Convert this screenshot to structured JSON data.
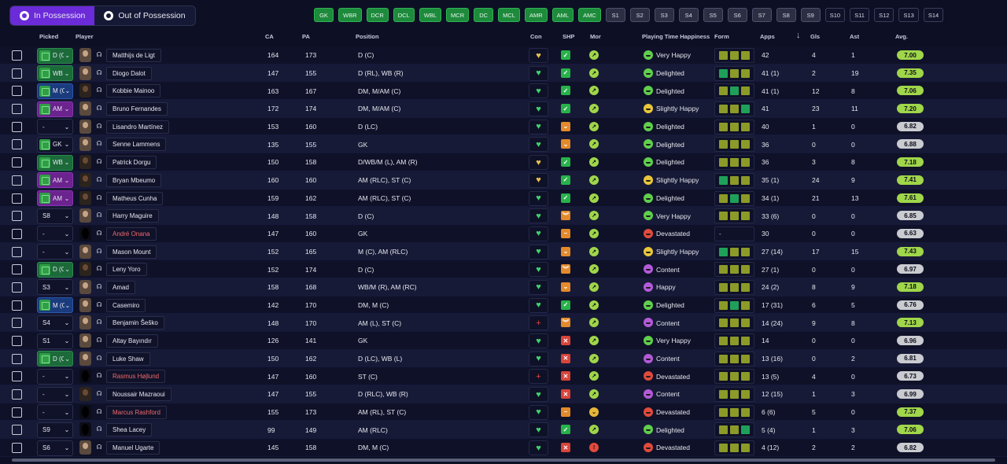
{
  "toggle": {
    "in_possession": "In Possession",
    "out_possession": "Out of Possession"
  },
  "filters": [
    "GK",
    "WBR",
    "DCR",
    "DCL",
    "WBL",
    "MCR",
    "DC",
    "MCL",
    "AMR",
    "AML",
    "AMC",
    "S1",
    "S2",
    "S3",
    "S4",
    "S5",
    "S6",
    "S7",
    "S8",
    "S9",
    "S10",
    "S11",
    "S12",
    "S13",
    "S14"
  ],
  "headers": {
    "picked": "Picked",
    "player": "Player",
    "ca": "CA",
    "pa": "PA",
    "position": "Position",
    "con": "Con",
    "shp": "SHP",
    "mor": "Mor",
    "pth": "Playing Time Happiness",
    "form": "Form",
    "apps": "Apps",
    "sort_arrow": "↓",
    "gls": "Gls",
    "ast": "Ast",
    "avg": "Avg."
  },
  "icons": {
    "pos_icon": "football-icon",
    "headset": "headset-icon",
    "chevron": "chevron-down-icon",
    "con": "heart-icon",
    "shp_ok": "check-icon",
    "shp_warn": "chevron-down-icon",
    "shp_bad": "x-icon",
    "mor": "face-icon"
  },
  "colors": {
    "accent": "#6c2bd9",
    "pos_chip": "#1d8a3c",
    "avg_high": "#9fd64a",
    "morale_good": "#9fd64a",
    "morale_bad": "#e14a3c",
    "name_red": "#f06a6a"
  },
  "rows": [
    {
      "picked": "D (C",
      "pick_style": "sel-green",
      "face": "light",
      "name": "Matthijs de Ligt",
      "ca": "164",
      "pa": "173",
      "position": "D (C)",
      "con": "♥",
      "con_color": "#e7c24a",
      "shp": "ok",
      "mor": "good",
      "pth": "Very Happy",
      "pth_color": "green",
      "form": [
        "o",
        "o",
        "o"
      ],
      "form_text": "",
      "apps": "42",
      "gls": "4",
      "ast": "1",
      "avg": "7.00",
      "avg_style": "hi"
    },
    {
      "picked": "WB",
      "pick_style": "sel-green",
      "face": "light",
      "name": "Diogo Dalot",
      "ca": "147",
      "pa": "155",
      "position": "D (RL), WB (R)",
      "con": "♥",
      "con_color": "#3fd36a",
      "shp": "ok",
      "mor": "good",
      "pth": "Delighted",
      "pth_color": "green",
      "form": [
        "g",
        "o",
        "o"
      ],
      "form_text": "",
      "apps": "41 (1)",
      "gls": "2",
      "ast": "19",
      "avg": "7.35",
      "avg_style": "hi"
    },
    {
      "picked": "M (C",
      "pick_style": "sel-blue",
      "face": "dark",
      "name": "Kobbie Mainoo",
      "ca": "163",
      "pa": "167",
      "position": "DM, M/AM (C)",
      "con": "♥",
      "con_color": "#3fd36a",
      "shp": "ok",
      "mor": "good",
      "pth": "Delighted",
      "pth_color": "green",
      "form": [
        "o",
        "g",
        "o"
      ],
      "form_text": "",
      "apps": "41 (1)",
      "gls": "12",
      "ast": "8",
      "avg": "7.06",
      "avg_style": "hi"
    },
    {
      "picked": "AM",
      "pick_style": "sel-purple",
      "face": "light",
      "name": "Bruno Fernandes",
      "ca": "172",
      "pa": "174",
      "position": "DM, M/AM (C)",
      "con": "♥",
      "con_color": "#3fd36a",
      "shp": "ok",
      "mor": "good",
      "pth": "Slightly Happy",
      "pth_color": "yellow",
      "form": [
        "o",
        "o",
        "g"
      ],
      "form_text": "",
      "apps": "41",
      "gls": "23",
      "ast": "11",
      "avg": "7.20",
      "avg_style": "hi"
    },
    {
      "picked": "-",
      "pick_style": "plain",
      "face": "light",
      "name": "Lisandro Martínez",
      "ca": "153",
      "pa": "160",
      "position": "D (LC)",
      "con": "♥",
      "con_color": "#3fd36a",
      "shp": "warn",
      "mor": "good",
      "pth": "Delighted",
      "pth_color": "green",
      "form": [
        "o",
        "o",
        "o"
      ],
      "form_text": "",
      "apps": "40",
      "gls": "1",
      "ast": "0",
      "avg": "6.82",
      "avg_style": "low"
    },
    {
      "picked": "GK",
      "pick_style": "sel-green-plain",
      "face": "light",
      "name": "Senne Lammens",
      "ca": "135",
      "pa": "155",
      "position": "GK",
      "con": "♥",
      "con_color": "#3fd36a",
      "shp": "warn",
      "mor": "good",
      "pth": "Delighted",
      "pth_color": "green",
      "form": [
        "o",
        "o",
        "o"
      ],
      "form_text": "",
      "apps": "36",
      "gls": "0",
      "ast": "0",
      "avg": "6.88",
      "avg_style": "low"
    },
    {
      "picked": "WB",
      "pick_style": "sel-green",
      "face": "dark",
      "name": "Patrick Dorgu",
      "ca": "150",
      "pa": "158",
      "position": "D/WB/M (L), AM (R)",
      "con": "♥",
      "con_color": "#e7c24a",
      "shp": "ok",
      "mor": "good",
      "pth": "Delighted",
      "pth_color": "green",
      "form": [
        "o",
        "o",
        "o"
      ],
      "form_text": "",
      "apps": "36",
      "gls": "3",
      "ast": "8",
      "avg": "7.18",
      "avg_style": "hi"
    },
    {
      "picked": "AM",
      "pick_style": "sel-purple",
      "face": "dark",
      "name": "Bryan Mbeumo",
      "ca": "160",
      "pa": "160",
      "position": "AM (RLC), ST (C)",
      "con": "♥",
      "con_color": "#e7c24a",
      "shp": "ok",
      "mor": "good",
      "pth": "Slightly Happy",
      "pth_color": "yellow",
      "form": [
        "g",
        "o",
        "o"
      ],
      "form_text": "",
      "apps": "35 (1)",
      "gls": "24",
      "ast": "9",
      "avg": "7.41",
      "avg_style": "hi"
    },
    {
      "picked": "AM",
      "pick_style": "sel-purple",
      "face": "dark",
      "name": "Matheus Cunha",
      "ca": "159",
      "pa": "162",
      "position": "AM (RLC), ST (C)",
      "con": "♥",
      "con_color": "#3fd36a",
      "shp": "ok",
      "mor": "good",
      "pth": "Delighted",
      "pth_color": "green",
      "form": [
        "o",
        "g",
        "o"
      ],
      "form_text": "",
      "apps": "34 (1)",
      "gls": "21",
      "ast": "13",
      "avg": "7.61",
      "avg_style": "hi"
    },
    {
      "picked": "S8",
      "pick_style": "plain",
      "face": "light",
      "name": "Harry Maguire",
      "ca": "148",
      "pa": "158",
      "position": "D (C)",
      "con": "♥",
      "con_color": "#3fd36a",
      "shp": "bad-warn",
      "mor": "good",
      "pth": "Very Happy",
      "pth_color": "green",
      "form": [
        "o",
        "o",
        "o"
      ],
      "form_text": "",
      "apps": "33 (6)",
      "gls": "0",
      "ast": "0",
      "avg": "6.85",
      "avg_style": "low"
    },
    {
      "picked": "-",
      "pick_style": "plain",
      "face": "silhouette",
      "name": "André Onana",
      "name_red": true,
      "ca": "147",
      "pa": "160",
      "position": "GK",
      "con": "♥",
      "con_color": "#3fd36a",
      "shp": "warn-flat",
      "mor": "good",
      "pth": "Devastated",
      "pth_color": "red",
      "form": [],
      "form_text": "-",
      "apps": "30",
      "gls": "0",
      "ast": "0",
      "avg": "6.63",
      "avg_style": "low"
    },
    {
      "picked": "-",
      "pick_style": "plain",
      "face": "light",
      "name": "Mason Mount",
      "ca": "152",
      "pa": "165",
      "position": "M (C), AM (RLC)",
      "con": "♥",
      "con_color": "#3fd36a",
      "shp": "warn",
      "mor": "good",
      "pth": "Slightly Happy",
      "pth_color": "yellow",
      "form": [
        "g",
        "o",
        "o"
      ],
      "form_text": "",
      "apps": "27 (14)",
      "gls": "17",
      "ast": "15",
      "avg": "7.43",
      "avg_style": "hi"
    },
    {
      "picked": "D (C",
      "pick_style": "sel-green",
      "face": "dark",
      "name": "Leny Yoro",
      "ca": "152",
      "pa": "174",
      "position": "D (C)",
      "con": "♥",
      "con_color": "#3fd36a",
      "shp": "bad-warn",
      "mor": "good",
      "pth": "Content",
      "pth_color": "purple",
      "form": [
        "o",
        "o",
        "o"
      ],
      "form_text": "",
      "apps": "27 (1)",
      "gls": "0",
      "ast": "0",
      "avg": "6.97",
      "avg_style": "low"
    },
    {
      "picked": "S3",
      "pick_style": "plain",
      "face": "light",
      "name": "Amad",
      "ca": "158",
      "pa": "168",
      "position": "WB/M (R), AM (RC)",
      "con": "♥",
      "con_color": "#3fd36a",
      "shp": "warn",
      "mor": "good",
      "pth": "Happy",
      "pth_color": "purple",
      "form": [
        "o",
        "o",
        "o"
      ],
      "form_text": "",
      "apps": "24 (2)",
      "gls": "8",
      "ast": "9",
      "avg": "7.18",
      "avg_style": "hi"
    },
    {
      "picked": "M (C",
      "pick_style": "sel-blue",
      "face": "light",
      "name": "Casemiro",
      "ca": "142",
      "pa": "170",
      "position": "DM, M (C)",
      "con": "♥",
      "con_color": "#3fd36a",
      "shp": "ok",
      "mor": "good",
      "pth": "Delighted",
      "pth_color": "green",
      "form": [
        "o",
        "g",
        "o"
      ],
      "form_text": "",
      "apps": "17 (31)",
      "gls": "6",
      "ast": "5",
      "avg": "6.76",
      "avg_style": "low"
    },
    {
      "picked": "S4",
      "pick_style": "plain",
      "face": "light",
      "name": "Benjamin Šeško",
      "ca": "148",
      "pa": "170",
      "position": "AM (L), ST (C)",
      "con": "+",
      "con_color": "#e14a3c",
      "shp": "bad-warn",
      "mor": "good",
      "pth": "Content",
      "pth_color": "purple",
      "form": [
        "o",
        "o",
        "o"
      ],
      "form_text": "",
      "apps": "14 (24)",
      "gls": "9",
      "ast": "8",
      "avg": "7.13",
      "avg_style": "hi"
    },
    {
      "picked": "S1",
      "pick_style": "plain",
      "face": "light",
      "name": "Altay Bayındır",
      "ca": "126",
      "pa": "141",
      "position": "GK",
      "con": "♥",
      "con_color": "#3fd36a",
      "shp": "bad",
      "mor": "good",
      "pth": "Very Happy",
      "pth_color": "green",
      "form": [
        "o",
        "o",
        "o"
      ],
      "form_text": "",
      "apps": "14",
      "gls": "0",
      "ast": "0",
      "avg": "6.96",
      "avg_style": "low"
    },
    {
      "picked": "D (C",
      "pick_style": "sel-green",
      "face": "light",
      "name": "Luke Shaw",
      "ca": "150",
      "pa": "162",
      "position": "D (LC), WB (L)",
      "con": "♥",
      "con_color": "#3fd36a",
      "shp": "bad",
      "mor": "good",
      "pth": "Content",
      "pth_color": "purple",
      "form": [
        "o",
        "o",
        "o"
      ],
      "form_text": "",
      "apps": "13 (16)",
      "gls": "0",
      "ast": "2",
      "avg": "6.81",
      "avg_style": "low"
    },
    {
      "picked": "-",
      "pick_style": "plain",
      "face": "silhouette",
      "name": "Rasmus Højlund",
      "name_red": true,
      "ca": "147",
      "pa": "160",
      "position": "ST (C)",
      "con": "+",
      "con_color": "#e14a3c",
      "shp": "bad",
      "mor": "good",
      "pth": "Devastated",
      "pth_color": "red",
      "form": [
        "o",
        "o",
        "o"
      ],
      "form_text": "",
      "apps": "13 (5)",
      "gls": "4",
      "ast": "0",
      "avg": "6.73",
      "avg_style": "low"
    },
    {
      "picked": "-",
      "pick_style": "plain",
      "face": "dark",
      "name": "Noussair Mazraoui",
      "ca": "147",
      "pa": "155",
      "position": "D (RLC), WB (R)",
      "con": "♥",
      "con_color": "#3fd36a",
      "shp": "bad",
      "mor": "good",
      "pth": "Content",
      "pth_color": "purple",
      "form": [
        "o",
        "o",
        "o"
      ],
      "form_text": "",
      "apps": "12 (15)",
      "gls": "1",
      "ast": "3",
      "avg": "6.99",
      "avg_style": "low"
    },
    {
      "picked": "-",
      "pick_style": "plain",
      "face": "silhouette",
      "name": "Marcus Rashford",
      "name_red": true,
      "ca": "155",
      "pa": "173",
      "position": "AM (RL), ST (C)",
      "con": "♥",
      "con_color": "#3fd36a",
      "shp": "warn-flat",
      "mor": "ok",
      "pth": "Devastated",
      "pth_color": "red",
      "form": [
        "o",
        "o",
        "o"
      ],
      "form_text": "",
      "apps": "6 (6)",
      "gls": "5",
      "ast": "0",
      "avg": "7.37",
      "avg_style": "hi"
    },
    {
      "picked": "S9",
      "pick_style": "plain",
      "face": "silhouette",
      "name": "Shea Lacey",
      "ca": "99",
      "pa": "149",
      "position": "AM (RLC)",
      "con": "♥",
      "con_color": "#3fd36a",
      "shp": "ok",
      "mor": "good",
      "pth": "Delighted",
      "pth_color": "green",
      "form": [
        "o",
        "o",
        "g"
      ],
      "form_text": "",
      "apps": "5 (4)",
      "gls": "1",
      "ast": "3",
      "avg": "7.06",
      "avg_style": "hi"
    },
    {
      "picked": "S6",
      "pick_style": "plain",
      "face": "light",
      "name": "Manuel Ugarte",
      "ca": "145",
      "pa": "158",
      "position": "DM, M (C)",
      "con": "♥",
      "con_color": "#3fd36a",
      "shp": "bad",
      "mor": "bad",
      "pth": "Devastated",
      "pth_color": "red",
      "form": [
        "o",
        "o",
        "o"
      ],
      "form_text": "",
      "apps": "4 (12)",
      "gls": "2",
      "ast": "2",
      "avg": "6.82",
      "avg_style": "low"
    }
  ]
}
